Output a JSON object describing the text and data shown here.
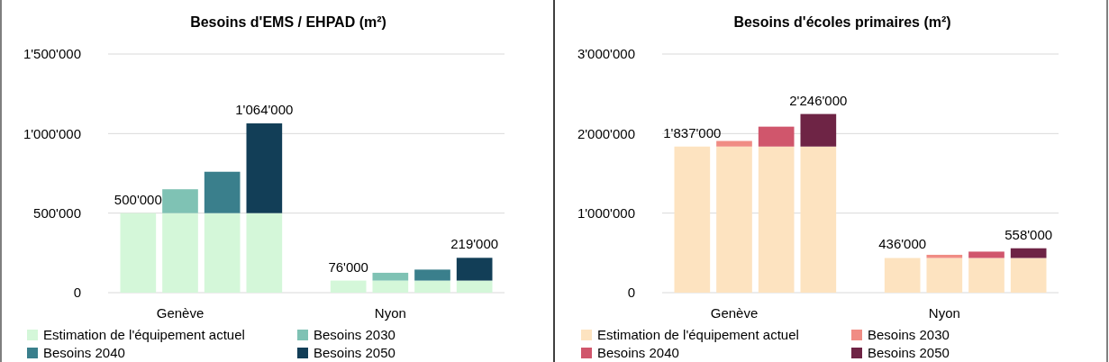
{
  "chart_data": [
    {
      "type": "bar",
      "stacked": true,
      "title": "Besoins d'EMS / EHPAD (m²)",
      "categories": [
        null,
        "Genève",
        null,
        null,
        null,
        null,
        "Nyon",
        null,
        null
      ],
      "ylim": [
        0,
        1500000
      ],
      "yticks": [
        {
          "value": 0,
          "label": "0"
        },
        {
          "value": 500000,
          "label": "500'000"
        },
        {
          "value": 1000000,
          "label": "1'000'000"
        },
        {
          "value": 1500000,
          "label": "1'500'000"
        }
      ],
      "grid": "y",
      "legend": "bottom",
      "totals": [
        "500'000",
        null,
        null,
        "1'064'000",
        null,
        "76'000",
        null,
        null,
        "219'000"
      ],
      "series": [
        {
          "name": "Estimation de l'équipement actuel",
          "color": "#d4f7d9",
          "values": [
            500000,
            500000,
            500000,
            500000,
            null,
            76000,
            76000,
            76000,
            76000
          ]
        },
        {
          "name": "Besoins 2030",
          "color": "#7fc2b4",
          "values": [
            null,
            150000,
            null,
            null,
            null,
            null,
            49000,
            null,
            null
          ]
        },
        {
          "name": "Besoins 2040",
          "color": "#3a7f8c",
          "values": [
            null,
            null,
            260000,
            null,
            null,
            null,
            null,
            69000,
            null
          ]
        },
        {
          "name": "Besoins 2050",
          "color": "#123e57",
          "values": [
            null,
            null,
            null,
            564000,
            null,
            null,
            null,
            null,
            143000
          ]
        }
      ]
    },
    {
      "type": "bar",
      "stacked": true,
      "title": "Besoins d'écoles primaires (m²)",
      "categories": [
        null,
        "Genève",
        null,
        null,
        null,
        null,
        "Nyon",
        null,
        null
      ],
      "ylim": [
        0,
        3000000
      ],
      "yticks": [
        {
          "value": 0,
          "label": "0"
        },
        {
          "value": 1000000,
          "label": "1'000'000"
        },
        {
          "value": 2000000,
          "label": "2'000'000"
        },
        {
          "value": 3000000,
          "label": "3'000'000"
        }
      ],
      "grid": "y",
      "legend": "bottom",
      "totals": [
        "1'837'000",
        null,
        null,
        "2'246'000",
        null,
        "436'000",
        null,
        null,
        "558'000"
      ],
      "series": [
        {
          "name": "Estimation de l'équipement actuel",
          "color": "#fde3c0",
          "values": [
            1837000,
            1837000,
            1837000,
            1837000,
            null,
            436000,
            436000,
            436000,
            436000
          ]
        },
        {
          "name": "Besoins 2030",
          "color": "#f08c84",
          "values": [
            null,
            70000,
            null,
            null,
            null,
            null,
            40000,
            null,
            null
          ]
        },
        {
          "name": "Besoins 2040",
          "color": "#d0566c",
          "values": [
            null,
            null,
            250000,
            null,
            null,
            null,
            null,
            80000,
            null
          ]
        },
        {
          "name": "Besoins 2050",
          "color": "#6e2445",
          "values": [
            null,
            null,
            null,
            409000,
            null,
            null,
            null,
            null,
            122000
          ]
        }
      ]
    }
  ]
}
